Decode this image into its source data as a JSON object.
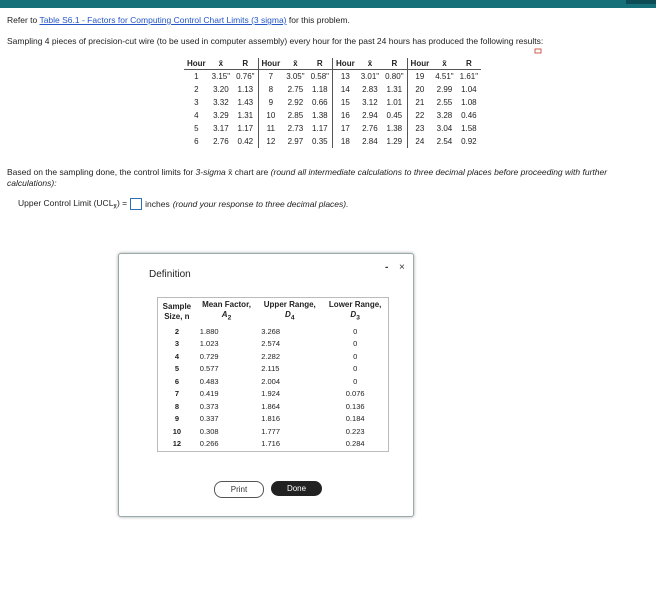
{
  "intro": {
    "before": "Refer to ",
    "link": "Table S6.1 - Factors for Computing Control Chart Limits (3 sigma)",
    "after": " for this problem."
  },
  "problem": "Sampling 4 pieces of precision-cut wire (to be used in computer assembly) every hour for the past 24 hours has produced the following results:",
  "data_table": {
    "headers": [
      "Hour",
      "x̄",
      "R"
    ],
    "rows": [
      [
        [
          "1",
          "3.15\"",
          "0.76\""
        ],
        [
          "7",
          "3.05\"",
          "0.58\""
        ],
        [
          "13",
          "3.01\"",
          "0.80\""
        ],
        [
          "19",
          "4.51\"",
          "1.61\""
        ]
      ],
      [
        [
          "2",
          "3.20",
          "1.13"
        ],
        [
          "8",
          "2.75",
          "1.18"
        ],
        [
          "14",
          "2.83",
          "1.31"
        ],
        [
          "20",
          "2.99",
          "1.04"
        ]
      ],
      [
        [
          "3",
          "3.32",
          "1.43"
        ],
        [
          "9",
          "2.92",
          "0.66"
        ],
        [
          "15",
          "3.12",
          "1.01"
        ],
        [
          "21",
          "2.55",
          "1.08"
        ]
      ],
      [
        [
          "4",
          "3.29",
          "1.31"
        ],
        [
          "10",
          "2.85",
          "1.38"
        ],
        [
          "16",
          "2.94",
          "0.45"
        ],
        [
          "22",
          "3.28",
          "0.46"
        ]
      ],
      [
        [
          "5",
          "3.17",
          "1.17"
        ],
        [
          "11",
          "2.73",
          "1.17"
        ],
        [
          "17",
          "2.76",
          "1.38"
        ],
        [
          "23",
          "3.04",
          "1.58"
        ]
      ],
      [
        [
          "6",
          "2.76",
          "0.42"
        ],
        [
          "12",
          "2.97",
          "0.35"
        ],
        [
          "18",
          "2.84",
          "1.29"
        ],
        [
          "24",
          "2.54",
          "0.92"
        ]
      ]
    ]
  },
  "instruction": {
    "a": "Based on the sampling done, the control limits for ",
    "b": "3-sigma",
    "c": " x̄ chart are ",
    "d": "(round all intermediate calculations to three decimal places before proceeding with further calculations):"
  },
  "ucl": {
    "label": "Upper Control Limit (UCL",
    "sub": "x̄",
    "eq": ") =",
    "unit": "inches",
    "note": "(round your response to three decimal places)."
  },
  "dialog": {
    "title": "Definition",
    "minimize": "-",
    "close": "×",
    "columns": [
      {
        "line1": "Sample",
        "line2": "Size, n"
      },
      {
        "line1": "Mean Factor,",
        "line2": "A",
        "sub": "2"
      },
      {
        "line1": "Upper Range,",
        "line2": "D",
        "sub": "4"
      },
      {
        "line1": "Lower Range,",
        "line2": "D",
        "sub": "3"
      }
    ],
    "rows": [
      [
        "2",
        "1.880",
        "3.268",
        "0"
      ],
      [
        "3",
        "1.023",
        "2.574",
        "0"
      ],
      [
        "4",
        "0.729",
        "2.282",
        "0"
      ],
      [
        "5",
        "0.577",
        "2.115",
        "0"
      ],
      [
        "6",
        "0.483",
        "2.004",
        "0"
      ],
      [
        "7",
        "0.419",
        "1.924",
        "0.076"
      ],
      [
        "8",
        "0.373",
        "1.864",
        "0.136"
      ],
      [
        "9",
        "0.337",
        "1.816",
        "0.184"
      ],
      [
        "10",
        "0.308",
        "1.777",
        "0.223"
      ],
      [
        "12",
        "0.266",
        "1.716",
        "0.284"
      ]
    ],
    "print": "Print",
    "done": "Done"
  }
}
